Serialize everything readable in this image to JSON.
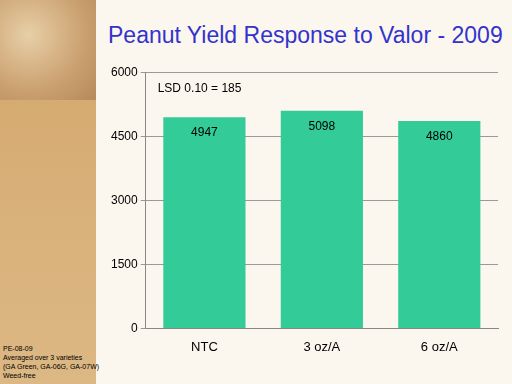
{
  "chart_data": {
    "type": "bar",
    "title": "Peanut Yield Response to Valor - 2009",
    "categories": [
      "NTC",
      "3 oz/A",
      "6 oz/A"
    ],
    "values": [
      4947,
      5098,
      4860
    ],
    "color": "#33cc99",
    "ylim": [
      0,
      6000
    ],
    "yticks": [
      0,
      1500,
      3000,
      4500,
      6000
    ],
    "grid": true,
    "data_labels": true,
    "annotations": [
      "LSD 0.10 = 185"
    ],
    "footnote": [
      "PE-08-09",
      "Averaged  over 3 varieties",
      "(GA Green, GA-06G, GA-07W)",
      "Weed-free"
    ]
  }
}
